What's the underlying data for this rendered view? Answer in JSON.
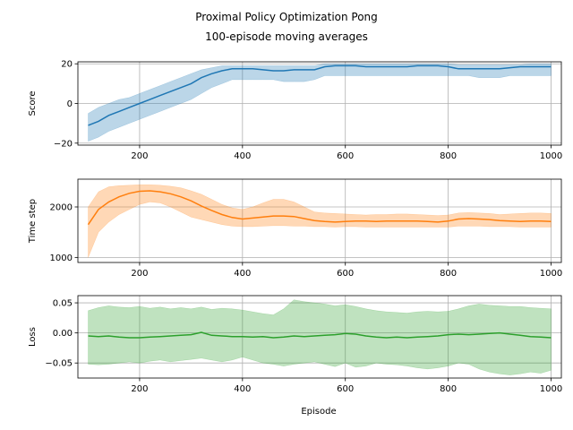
{
  "figure": {
    "title_line1": "Proximal Policy Optimization Pong",
    "title_line2": "100-episode moving averages",
    "shared_xlabel": "Episode"
  },
  "chart_data": [
    {
      "type": "area",
      "ylabel": "Score",
      "color": "#1f77b4",
      "xlim": [
        80,
        1020
      ],
      "ylim": [
        -21,
        21
      ],
      "xticks": [
        200,
        400,
        600,
        800,
        1000
      ],
      "yticks": [
        -20,
        0,
        20
      ],
      "grid": true,
      "x": [
        100,
        120,
        140,
        160,
        180,
        200,
        220,
        240,
        260,
        280,
        300,
        320,
        340,
        360,
        380,
        400,
        420,
        440,
        460,
        480,
        500,
        520,
        540,
        560,
        580,
        600,
        620,
        640,
        660,
        680,
        700,
        720,
        740,
        760,
        780,
        800,
        820,
        840,
        860,
        880,
        900,
        920,
        940,
        960,
        980,
        1000
      ],
      "mean": [
        -11,
        -9,
        -6,
        -4,
        -2,
        0,
        2,
        4,
        6,
        8,
        10,
        13,
        15,
        16.5,
        17.5,
        17.5,
        17.5,
        17,
        16.5,
        16.5,
        17,
        17,
        17,
        18.5,
        19,
        19,
        19,
        18.5,
        18.5,
        18.5,
        18.5,
        18.5,
        19,
        19,
        19,
        18.5,
        17.5,
        17.5,
        17.5,
        17.5,
        17.5,
        18,
        18.5,
        18.5,
        18.5,
        18.5
      ],
      "upper": [
        -5,
        -2,
        0,
        2,
        3,
        5,
        7,
        9,
        11,
        13,
        15,
        17,
        18,
        19,
        19,
        19,
        19,
        19,
        19,
        19,
        19,
        19,
        19,
        20,
        20,
        20,
        20,
        20,
        20,
        20,
        20,
        20,
        20,
        20,
        20,
        20,
        19.5,
        19.5,
        19.5,
        19.5,
        19.5,
        19.5,
        19.5,
        20,
        20,
        20
      ],
      "lower": [
        -19,
        -17,
        -14,
        -12,
        -10,
        -8,
        -6,
        -4,
        -2,
        0,
        2,
        5,
        8,
        10,
        12,
        12,
        12,
        12,
        12,
        11,
        11,
        11,
        12,
        14,
        14,
        14,
        14,
        14,
        14,
        14,
        14,
        14,
        14,
        14,
        14,
        14,
        14,
        14,
        13,
        13,
        13,
        14,
        14,
        14,
        14,
        14
      ]
    },
    {
      "type": "area",
      "ylabel": "Time step",
      "color": "#ff7f0e",
      "xlim": [
        80,
        1020
      ],
      "ylim": [
        900,
        2550
      ],
      "xticks": [
        200,
        400,
        600,
        800,
        1000
      ],
      "yticks": [
        1000,
        2000
      ],
      "grid": true,
      "x": [
        100,
        120,
        140,
        160,
        180,
        200,
        220,
        240,
        260,
        280,
        300,
        320,
        340,
        360,
        380,
        400,
        420,
        440,
        460,
        480,
        500,
        520,
        540,
        560,
        580,
        600,
        620,
        640,
        660,
        680,
        700,
        720,
        740,
        760,
        780,
        800,
        820,
        840,
        860,
        880,
        900,
        920,
        940,
        960,
        980,
        1000
      ],
      "mean": [
        1650,
        1950,
        2100,
        2200,
        2270,
        2310,
        2320,
        2300,
        2260,
        2200,
        2120,
        2020,
        1930,
        1850,
        1790,
        1760,
        1780,
        1800,
        1820,
        1820,
        1810,
        1770,
        1730,
        1710,
        1700,
        1710,
        1720,
        1720,
        1710,
        1720,
        1720,
        1720,
        1720,
        1710,
        1700,
        1720,
        1760,
        1770,
        1760,
        1750,
        1730,
        1720,
        1710,
        1720,
        1720,
        1710
      ],
      "upper": [
        2000,
        2300,
        2400,
        2420,
        2430,
        2440,
        2440,
        2430,
        2410,
        2380,
        2320,
        2250,
        2150,
        2050,
        1980,
        1950,
        2000,
        2080,
        2150,
        2150,
        2100,
        2000,
        1900,
        1880,
        1870,
        1860,
        1850,
        1840,
        1850,
        1850,
        1860,
        1860,
        1850,
        1840,
        1830,
        1840,
        1880,
        1890,
        1880,
        1870,
        1850,
        1860,
        1870,
        1880,
        1880,
        1870
      ],
      "lower": [
        1000,
        1500,
        1700,
        1850,
        1950,
        2050,
        2100,
        2080,
        2000,
        1900,
        1800,
        1750,
        1700,
        1650,
        1620,
        1610,
        1610,
        1620,
        1630,
        1630,
        1620,
        1620,
        1610,
        1610,
        1600,
        1610,
        1610,
        1600,
        1600,
        1600,
        1600,
        1600,
        1600,
        1600,
        1600,
        1600,
        1620,
        1620,
        1620,
        1610,
        1610,
        1610,
        1600,
        1600,
        1600,
        1600
      ]
    },
    {
      "type": "area",
      "ylabel": "Loss",
      "color": "#2ca02c",
      "xlim": [
        80,
        1020
      ],
      "ylim": [
        -0.075,
        0.062
      ],
      "xticks": [
        200,
        400,
        600,
        800,
        1000
      ],
      "yticks": [
        -0.05,
        0.0,
        0.05
      ],
      "ytick_labels": [
        "−0.05",
        "0.00",
        "0.05"
      ],
      "grid": true,
      "x": [
        100,
        120,
        140,
        160,
        180,
        200,
        220,
        240,
        260,
        280,
        300,
        320,
        340,
        360,
        380,
        400,
        420,
        440,
        460,
        480,
        500,
        520,
        540,
        560,
        580,
        600,
        620,
        640,
        660,
        680,
        700,
        720,
        740,
        760,
        780,
        800,
        820,
        840,
        860,
        880,
        900,
        920,
        940,
        960,
        980,
        1000
      ],
      "mean": [
        -0.005,
        -0.006,
        -0.005,
        -0.007,
        -0.008,
        -0.008,
        -0.007,
        -0.006,
        -0.005,
        -0.004,
        -0.003,
        0.001,
        -0.004,
        -0.005,
        -0.006,
        -0.006,
        -0.007,
        -0.006,
        -0.008,
        -0.007,
        -0.005,
        -0.006,
        -0.005,
        -0.004,
        -0.003,
        -0.001,
        -0.002,
        -0.005,
        -0.007,
        -0.008,
        -0.007,
        -0.008,
        -0.007,
        -0.006,
        -0.005,
        -0.003,
        -0.002,
        -0.003,
        -0.002,
        -0.001,
        0.0,
        -0.002,
        -0.004,
        -0.006,
        -0.007,
        -0.008
      ],
      "upper": [
        0.037,
        0.042,
        0.045,
        0.043,
        0.042,
        0.044,
        0.041,
        0.043,
        0.04,
        0.042,
        0.04,
        0.043,
        0.039,
        0.041,
        0.04,
        0.038,
        0.035,
        0.032,
        0.03,
        0.04,
        0.055,
        0.052,
        0.05,
        0.048,
        0.045,
        0.047,
        0.044,
        0.04,
        0.037,
        0.035,
        0.034,
        0.033,
        0.035,
        0.036,
        0.035,
        0.036,
        0.04,
        0.045,
        0.048,
        0.046,
        0.045,
        0.044,
        0.044,
        0.042,
        0.041,
        0.04
      ],
      "lower": [
        -0.052,
        -0.053,
        -0.052,
        -0.05,
        -0.048,
        -0.05,
        -0.047,
        -0.045,
        -0.048,
        -0.046,
        -0.044,
        -0.042,
        -0.045,
        -0.048,
        -0.045,
        -0.04,
        -0.045,
        -0.05,
        -0.052,
        -0.055,
        -0.052,
        -0.05,
        -0.048,
        -0.052,
        -0.056,
        -0.05,
        -0.057,
        -0.055,
        -0.05,
        -0.052,
        -0.053,
        -0.055,
        -0.058,
        -0.06,
        -0.058,
        -0.055,
        -0.05,
        -0.052,
        -0.06,
        -0.065,
        -0.068,
        -0.07,
        -0.068,
        -0.065,
        -0.067,
        -0.062
      ]
    }
  ]
}
